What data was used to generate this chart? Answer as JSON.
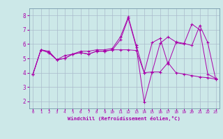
{
  "x": [
    0,
    1,
    2,
    3,
    4,
    5,
    6,
    7,
    8,
    9,
    10,
    11,
    12,
    13,
    14,
    15,
    16,
    17,
    18,
    19,
    20,
    21,
    22,
    23
  ],
  "line1": [
    3.9,
    5.6,
    5.5,
    4.9,
    5.2,
    5.3,
    5.5,
    5.5,
    5.6,
    5.6,
    5.7,
    6.5,
    7.9,
    5.9,
    4.0,
    6.1,
    6.4,
    4.6,
    6.1,
    6.0,
    7.4,
    7.0,
    3.9,
    3.6
  ],
  "line2": [
    3.9,
    5.6,
    5.4,
    4.9,
    5.0,
    5.3,
    5.4,
    5.3,
    5.5,
    5.5,
    5.6,
    6.3,
    7.8,
    5.8,
    1.95,
    4.05,
    4.05,
    4.7,
    4.0,
    3.9,
    3.8,
    3.7,
    3.65,
    3.55
  ],
  "line3": [
    3.9,
    5.6,
    5.4,
    4.9,
    5.0,
    5.3,
    5.4,
    5.3,
    5.5,
    5.5,
    5.6,
    5.6,
    5.6,
    5.55,
    4.0,
    4.05,
    6.05,
    6.5,
    6.15,
    6.05,
    5.9,
    7.3,
    6.1,
    3.55
  ],
  "line_color": "#aa00aa",
  "bg_color": "#cce8e8",
  "grid_color": "#aabbcc",
  "xlabel": "Windchill (Refroidissement éolien,°C)",
  "ylim": [
    1.5,
    8.5
  ],
  "xlim": [
    -0.5,
    23.5
  ],
  "yticks": [
    2,
    3,
    4,
    5,
    6,
    7,
    8
  ],
  "xticks": [
    0,
    1,
    2,
    3,
    4,
    5,
    6,
    7,
    8,
    9,
    10,
    11,
    12,
    13,
    14,
    15,
    16,
    17,
    18,
    19,
    20,
    21,
    22,
    23
  ]
}
